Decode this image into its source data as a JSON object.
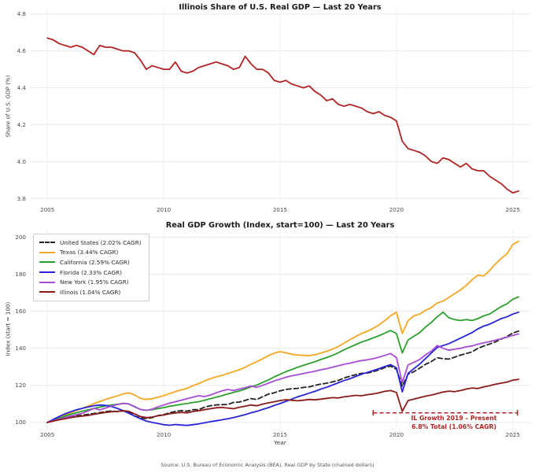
{
  "source_note": "Source: U.S. Bureau of Economic Analysis (BEA), Real GDP by State (chained dollars)",
  "chart_data": [
    {
      "type": "line",
      "title": "Illinois Share of U.S. Real GDP — Last 20 Years",
      "xlabel": "",
      "ylabel": "Share of U.S. GDP (%)",
      "xticks": [
        2005,
        2010,
        2015,
        2020,
        2025
      ],
      "yticks": [
        3.8,
        4.0,
        4.2,
        4.4,
        4.6,
        4.8
      ],
      "xlim": [
        2004.25,
        2025.75
      ],
      "ylim": [
        3.775,
        4.825
      ],
      "grid": true,
      "legend": false,
      "x_start": 2005,
      "x_step": 0.25,
      "series": [
        {
          "name": "Illinois share of U.S. real GDP (%)",
          "color": "#b22222",
          "dash": "",
          "values": [
            4.67,
            4.66,
            4.64,
            4.63,
            4.62,
            4.63,
            4.62,
            4.6,
            4.58,
            4.63,
            4.62,
            4.62,
            4.61,
            4.6,
            4.6,
            4.59,
            4.55,
            4.5,
            4.52,
            4.51,
            4.5,
            4.5,
            4.54,
            4.49,
            4.48,
            4.49,
            4.51,
            4.52,
            4.53,
            4.54,
            4.53,
            4.52,
            4.5,
            4.51,
            4.57,
            4.53,
            4.5,
            4.5,
            4.48,
            4.44,
            4.43,
            4.44,
            4.42,
            4.41,
            4.4,
            4.41,
            4.38,
            4.36,
            4.33,
            4.34,
            4.31,
            4.3,
            4.31,
            4.3,
            4.29,
            4.27,
            4.26,
            4.27,
            4.25,
            4.24,
            4.22,
            4.11,
            4.07,
            4.06,
            4.05,
            4.03,
            4.0,
            3.99,
            4.02,
            4.01,
            3.99,
            3.97,
            3.99,
            3.96,
            3.95,
            3.95,
            3.92,
            3.9,
            3.88,
            3.85,
            3.83,
            3.84
          ]
        }
      ]
    },
    {
      "type": "line",
      "title": "Real GDP Growth (Index, start=100) — Last 20 Years",
      "xlabel": "Year",
      "ylabel": "Index (start = 100)",
      "xticks": [
        2005,
        2010,
        2015,
        2020,
        2025
      ],
      "yticks": [
        100,
        120,
        140,
        160,
        180,
        200
      ],
      "xlim": [
        2004.25,
        2025.75
      ],
      "ylim": [
        97,
        204
      ],
      "grid": true,
      "legend": true,
      "legend_position": "upper-left",
      "x_start": 2005,
      "x_step": 0.25,
      "series": [
        {
          "name": "United States (2.02% CAGR)",
          "color": "#222222",
          "dash": "6,3.5",
          "values": [
            100,
            100.9,
            101.7,
            102.4,
            103.2,
            103.6,
            103.9,
            104.4,
            104.8,
            105.3,
            105.8,
            106.2,
            105.8,
            106.2,
            105.7,
            103.5,
            102.4,
            102.2,
            102.6,
            103.7,
            104.2,
            105.2,
            105.9,
            106.4,
            106.1,
            106.9,
            106.9,
            108.2,
            109.0,
            109.5,
            109.6,
            109.7,
            110.8,
            111.0,
            111.9,
            112.9,
            112.4,
            113.9,
            115.3,
            116.0,
            117.1,
            117.8,
            118.2,
            118.4,
            118.9,
            119.2,
            120.0,
            120.7,
            121.2,
            121.9,
            122.7,
            124.0,
            124.9,
            125.8,
            126.5,
            126.7,
            127.4,
            128.4,
            129.6,
            130.4,
            128.7,
            119.5,
            126.1,
            127.4,
            129.3,
            131.4,
            132.9,
            134.9,
            134.4,
            134.2,
            135.2,
            136.3,
            137.2,
            138.1,
            140.0,
            141.2,
            142.3,
            143.5,
            145.0,
            146.4,
            148.3,
            149.3
          ]
        },
        {
          "name": "Texas (3.44% CAGR)",
          "color": "#f5a623",
          "dash": "",
          "values": [
            100,
            101.3,
            102.5,
            103.8,
            105.2,
            106.5,
            107.6,
            108.8,
            110.1,
            111.3,
            112.4,
            113.4,
            114.3,
            115.4,
            116.0,
            114.8,
            113.0,
            112.4,
            112.8,
            113.6,
            114.4,
            115.6,
            116.6,
            117.6,
            118.4,
            119.8,
            121.0,
            122.4,
            123.6,
            124.6,
            125.4,
            126.4,
            127.4,
            128.4,
            129.8,
            131.4,
            132.8,
            134.4,
            136.0,
            137.4,
            138.2,
            137.6,
            136.8,
            136.4,
            136.2,
            136.0,
            136.6,
            137.4,
            138.4,
            139.6,
            141.0,
            142.8,
            144.6,
            146.4,
            148.0,
            149.2,
            150.8,
            152.6,
            155.0,
            157.6,
            159.5,
            148.0,
            155.0,
            157.5,
            158.5,
            160.5,
            162.0,
            164.5,
            165.5,
            167.5,
            169.5,
            171.5,
            174.0,
            177.0,
            179.5,
            179.0,
            182.0,
            185.5,
            188.5,
            191.0,
            196.0,
            197.8
          ]
        },
        {
          "name": "California (2.59% CAGR)",
          "color": "#2ca02c",
          "dash": "",
          "values": [
            100,
            101.2,
            102.3,
            103.4,
            104.4,
            105.3,
            106.1,
            106.8,
            107.5,
            108.3,
            108.9,
            109.4,
            109.8,
            110.3,
            110.0,
            108.4,
            107.0,
            106.6,
            106.9,
            107.5,
            108.0,
            108.7,
            109.2,
            109.8,
            110.2,
            110.8,
            111.2,
            112.0,
            112.8,
            113.6,
            114.4,
            115.4,
            116.2,
            117.0,
            118.0,
            119.2,
            120.2,
            121.6,
            123.0,
            124.6,
            126.0,
            127.4,
            128.6,
            129.8,
            130.8,
            131.8,
            132.8,
            134.0,
            135.0,
            136.2,
            137.6,
            139.2,
            140.6,
            142.0,
            143.4,
            144.4,
            145.6,
            146.8,
            148.2,
            149.6,
            148.0,
            137.5,
            144.5,
            146.5,
            148.5,
            151.5,
            154.0,
            157.0,
            159.5,
            156.5,
            155.5,
            155.0,
            155.5,
            155.0,
            156.0,
            157.5,
            158.5,
            160.5,
            162.5,
            164.0,
            166.5,
            167.8
          ]
        },
        {
          "name": "Florida (2.33% CAGR)",
          "color": "#2626d8",
          "dash": "",
          "values": [
            100,
            101.6,
            103.2,
            104.6,
            105.8,
            106.8,
            107.6,
            108.4,
            109.0,
            109.4,
            109.2,
            108.6,
            107.6,
            106.4,
            105.0,
            103.4,
            102.0,
            100.8,
            100.0,
            99.4,
            98.8,
            98.5,
            98.9,
            98.6,
            98.4,
            98.8,
            99.2,
            99.8,
            100.4,
            100.9,
            101.4,
            102.0,
            102.6,
            103.4,
            104.2,
            105.2,
            106.0,
            107.0,
            108.0,
            109.2,
            110.2,
            111.4,
            112.6,
            113.8,
            114.8,
            115.8,
            116.8,
            118.0,
            119.0,
            120.2,
            121.4,
            122.6,
            123.6,
            124.8,
            126.0,
            127.0,
            128.0,
            129.0,
            130.2,
            131.2,
            129.5,
            116.5,
            126.5,
            129.0,
            131.5,
            134.5,
            137.5,
            140.5,
            141.5,
            142.5,
            144.0,
            145.5,
            147.0,
            148.5,
            150.5,
            152.0,
            153.0,
            154.5,
            156.0,
            157.0,
            158.5,
            159.5
          ]
        },
        {
          "name": "New York (1.95% CAGR)",
          "color": "#a64cd6",
          "dash": "",
          "values": [
            100,
            100.9,
            101.8,
            102.6,
            103.4,
            104.2,
            105.0,
            106.2,
            107.6,
            106.8,
            107.8,
            108.8,
            109.6,
            110.3,
            110.0,
            108.6,
            107.0,
            106.5,
            107.2,
            108.4,
            109.4,
            110.4,
            111.2,
            112.0,
            112.8,
            113.6,
            114.4,
            114.0,
            114.8,
            116.0,
            117.0,
            117.8,
            117.2,
            118.0,
            118.8,
            119.6,
            119.0,
            120.0,
            121.2,
            122.4,
            123.4,
            124.4,
            125.2,
            125.8,
            126.4,
            127.0,
            127.6,
            128.4,
            129.0,
            129.8,
            130.6,
            131.4,
            132.0,
            132.8,
            133.4,
            133.8,
            134.4,
            135.2,
            136.2,
            137.2,
            135.0,
            121.5,
            131.0,
            132.5,
            134.0,
            136.5,
            138.5,
            141.5,
            140.0,
            139.0,
            139.5,
            140.0,
            140.8,
            141.3,
            142.2,
            143.0,
            143.6,
            144.4,
            145.2,
            146.0,
            147.0,
            147.8
          ]
        },
        {
          "name": "Illinois (1.04% CAGR)",
          "color": "#8b1a1a",
          "dash": "",
          "values": [
            100,
            100.7,
            101.4,
            102.0,
            102.6,
            103.1,
            103.4,
            103.8,
            104.4,
            104.9,
            105.4,
            105.8,
            105.9,
            106.4,
            106.0,
            104.6,
            103.2,
            102.6,
            102.9,
            103.6,
            104.0,
            104.7,
            105.1,
            105.4,
            105.2,
            105.9,
            106.3,
            106.9,
            107.4,
            107.9,
            108.1,
            107.8,
            107.4,
            108.2,
            108.8,
            109.4,
            109.0,
            109.9,
            110.6,
            111.2,
            111.8,
            112.3,
            112.0,
            111.7,
            112.0,
            112.4,
            112.2,
            112.6,
            113.0,
            113.4,
            113.2,
            113.8,
            114.2,
            114.6,
            114.4,
            115.0,
            115.4,
            116.0,
            116.8,
            117.2,
            116.2,
            106.0,
            111.8,
            112.6,
            113.4,
            114.2,
            114.8,
            115.6,
            116.4,
            116.9,
            116.6,
            117.2,
            118.0,
            118.6,
            118.3,
            119.2,
            119.8,
            120.6,
            121.2,
            121.8,
            122.8,
            123.3
          ]
        }
      ],
      "annotation": {
        "line1": "IL Growth 2019 – Present",
        "line2": "6.8% Total (1.06% CAGR)",
        "color": "#b22222",
        "x_from": 2019.0,
        "x_to": 2025.2,
        "y": 105.2
      }
    }
  ]
}
